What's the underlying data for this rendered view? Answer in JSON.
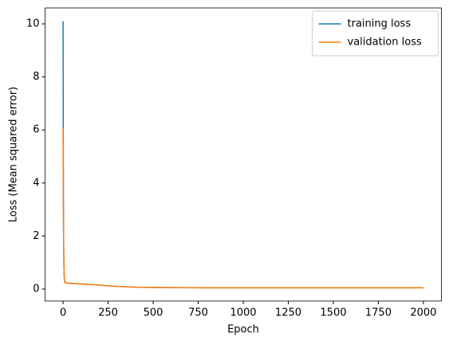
{
  "chart_data": {
    "type": "line",
    "x_label": "Epoch",
    "y_label": "Loss (Mean squared error)",
    "x": [
      0,
      1,
      2,
      3,
      5,
      7,
      10,
      20,
      50,
      100,
      150,
      200,
      250,
      300,
      400,
      500,
      750,
      1000,
      1250,
      1500,
      1750,
      2000
    ],
    "series": [
      {
        "name": "training loss",
        "color": "#1f77b4",
        "values": [
          10.1,
          6.1,
          3.0,
          1.8,
          0.8,
          0.4,
          0.25,
          0.23,
          0.21,
          0.19,
          0.17,
          0.15,
          0.12,
          0.1,
          0.07,
          0.06,
          0.05,
          0.05,
          0.05,
          0.05,
          0.05,
          0.05
        ]
      },
      {
        "name": "validation loss",
        "color": "#ff7f0e",
        "values": [
          6.05,
          4.2,
          2.8,
          1.7,
          0.75,
          0.38,
          0.24,
          0.22,
          0.21,
          0.19,
          0.17,
          0.15,
          0.12,
          0.1,
          0.07,
          0.06,
          0.05,
          0.05,
          0.05,
          0.05,
          0.05,
          0.05
        ]
      }
    ],
    "xlim": [
      -100,
      2100
    ],
    "xticks": [
      0,
      250,
      500,
      750,
      1000,
      1250,
      1500,
      1750,
      2000
    ],
    "ylim": [
      -0.45,
      10.6
    ],
    "yticks": [
      0,
      2,
      4,
      6,
      8,
      10
    ],
    "grid": false,
    "legend": "upper right"
  }
}
